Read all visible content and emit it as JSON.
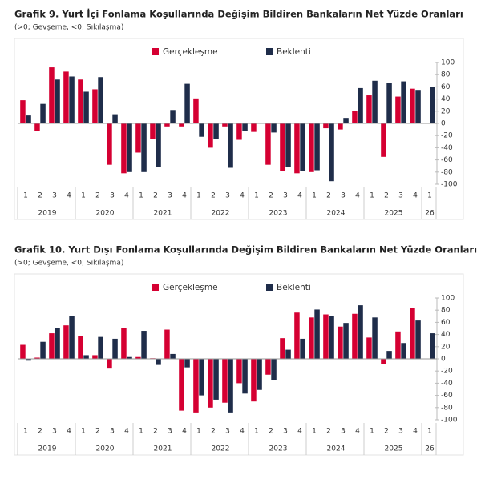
{
  "chart_data": [
    {
      "type": "bar",
      "title": "Grafik 9. Yurt İçi Fonlama Koşullarında Değişim Bildiren Bankaların Net Yüzde Oranları",
      "subtitle": "(>0; Gevşeme, <0; Sıkılaşma)",
      "categories": [
        "1",
        "2",
        "3",
        "4",
        "1",
        "2",
        "3",
        "4",
        "1",
        "2",
        "3",
        "4",
        "1",
        "2",
        "3",
        "4",
        "1",
        "2",
        "3",
        "4",
        "1",
        "2",
        "3",
        "4",
        "1",
        "2",
        "3",
        "4",
        "1"
      ],
      "years": [
        "2019",
        "2020",
        "2021",
        "2022",
        "2023",
        "2024",
        "2025",
        "26"
      ],
      "series": [
        {
          "name": "Gerçekleşme",
          "color": "#d50032",
          "values": [
            38,
            -12,
            92,
            85,
            72,
            56,
            -68,
            -82,
            -48,
            -25,
            -5,
            -5,
            41,
            -40,
            -5,
            -27,
            -14,
            -68,
            -78,
            -82,
            -80,
            -8,
            -10,
            21,
            46,
            -55,
            44,
            57,
            null
          ]
        },
        {
          "name": "Beklenti",
          "color": "#1f2d4a",
          "values": [
            13,
            32,
            72,
            77,
            52,
            76,
            15,
            -80,
            -80,
            -72,
            22,
            65,
            -22,
            -25,
            -73,
            -12,
            1,
            -15,
            -72,
            -78,
            -77,
            -95,
            9,
            58,
            70,
            67,
            69,
            55,
            60
          ]
        }
      ],
      "ylim": [
        -100,
        100
      ],
      "yticks": [
        -100,
        -80,
        -60,
        -40,
        -20,
        0,
        20,
        40,
        60,
        80,
        100
      ]
    },
    {
      "type": "bar",
      "title": "Grafik 10. Yurt Dışı Fonlama Koşullarında Değişim Bildiren Bankaların Net Yüzde Oranları",
      "subtitle": "(>0; Gevşeme, <0; Sıkılaşma)",
      "categories": [
        "1",
        "2",
        "3",
        "4",
        "1",
        "2",
        "3",
        "4",
        "1",
        "2",
        "3",
        "4",
        "1",
        "2",
        "3",
        "4",
        "1",
        "2",
        "3",
        "4",
        "1",
        "2",
        "3",
        "4",
        "1",
        "2",
        "3",
        "4",
        "1"
      ],
      "years": [
        "2019",
        "2020",
        "2021",
        "2022",
        "2023",
        "2024",
        "2025",
        "26"
      ],
      "series": [
        {
          "name": "Gerçekleşme",
          "color": "#d50032",
          "values": [
            23,
            2,
            42,
            55,
            38,
            6,
            -16,
            51,
            3,
            1,
            48,
            -85,
            -88,
            -80,
            -72,
            -40,
            -70,
            -26,
            34,
            76,
            68,
            73,
            53,
            74,
            35,
            -8,
            45,
            83,
            null
          ]
        },
        {
          "name": "Beklenti",
          "color": "#1f2d4a",
          "values": [
            -3,
            28,
            50,
            71,
            6,
            36,
            33,
            3,
            46,
            -10,
            8,
            -14,
            -60,
            -67,
            -88,
            -57,
            -51,
            -35,
            15,
            33,
            81,
            70,
            59,
            88,
            68,
            13,
            26,
            63,
            42
          ]
        }
      ],
      "ylim": [
        -100,
        100
      ],
      "yticks": [
        -100,
        -80,
        -60,
        -40,
        -20,
        0,
        20,
        40,
        60,
        80,
        100
      ]
    }
  ]
}
